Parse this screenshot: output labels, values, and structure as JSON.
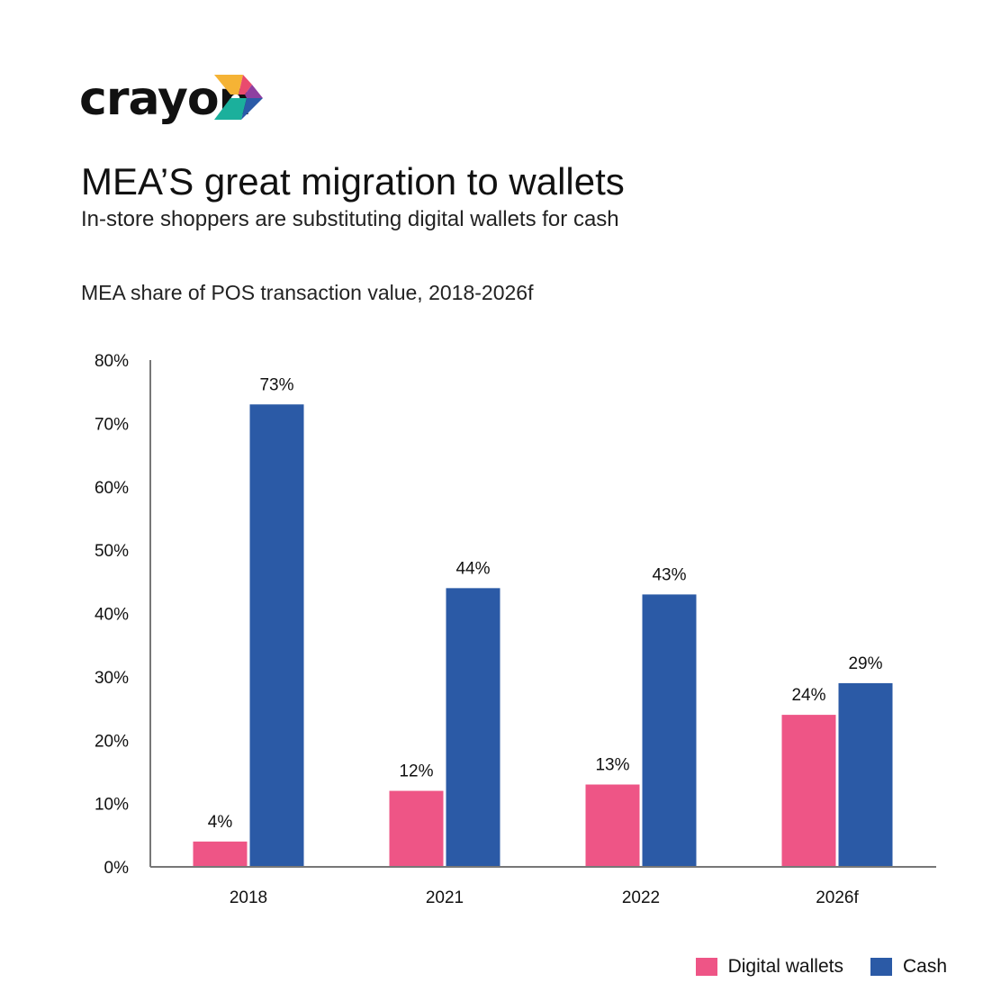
{
  "logo": {
    "text": "crayon",
    "mark_colors": [
      "#F5B335",
      "#E94B6E",
      "#8E3FA0",
      "#1BB09C",
      "#2B5BA8"
    ]
  },
  "title": "MEA’S great migration to wallets",
  "subtitle": "In-store shoppers are substituting digital wallets for cash",
  "chart_data": {
    "type": "bar",
    "title": "MEA share of POS transaction value, 2018-2026f",
    "categories": [
      "2018",
      "2021",
      "2022",
      "2026f"
    ],
    "series": [
      {
        "name": "Digital wallets",
        "color": "#EE5586",
        "values": [
          4,
          12,
          13,
          24
        ],
        "labels": [
          "4%",
          "12%",
          "13%",
          "24%"
        ]
      },
      {
        "name": "Cash",
        "color": "#2B5AA6",
        "values": [
          73,
          44,
          43,
          29
        ],
        "labels": [
          "73%",
          "44%",
          "43%",
          "29%"
        ]
      }
    ],
    "ylim": [
      0,
      80
    ],
    "yticks": [
      0,
      10,
      20,
      30,
      40,
      50,
      60,
      70,
      80
    ],
    "ytick_labels": [
      "0%",
      "10%",
      "20%",
      "30%",
      "40%",
      "50%",
      "60%",
      "70%",
      "80%"
    ],
    "xlabel": "",
    "ylabel": "",
    "grid": false,
    "legend_position": "bottom-right"
  }
}
